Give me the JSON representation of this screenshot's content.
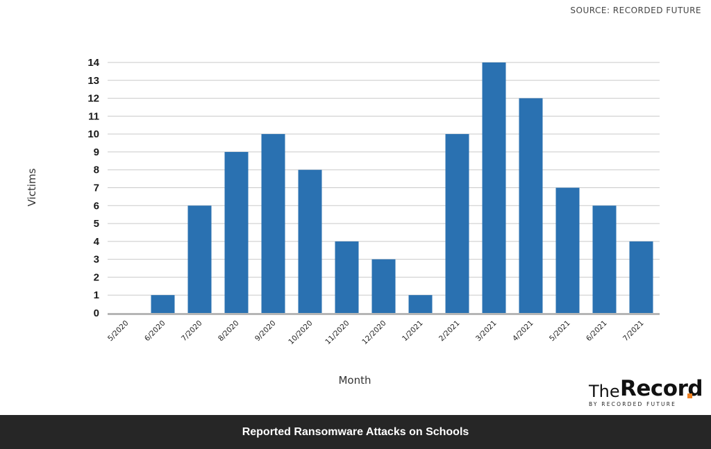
{
  "source_label": "SOURCE: RECORDED FUTURE",
  "footer_title": "Reported Ransomware Attacks on Schools",
  "brand": {
    "the": "The",
    "record": "Record",
    "tagline": "BY RECORDED FUTURE",
    "dot_color": "#ef8122"
  },
  "chart_data": {
    "type": "bar",
    "title": "",
    "xlabel": "Month",
    "ylabel": "Victims",
    "ylim": [
      0,
      14
    ],
    "yticks": [
      0,
      1,
      2,
      3,
      4,
      5,
      6,
      7,
      8,
      9,
      10,
      11,
      12,
      13,
      14
    ],
    "grid": true,
    "bar_color": "#2a71b1",
    "categories": [
      "5/2020",
      "6/2020",
      "7/2020",
      "8/2020",
      "9/2020",
      "10/2020",
      "11/2020",
      "12/2020",
      "1/2021",
      "2/2021",
      "3/2021",
      "4/2021",
      "5/2021",
      "6/2021",
      "7/2021"
    ],
    "values": [
      0,
      1,
      6,
      9,
      10,
      8,
      4,
      3,
      1,
      10,
      14,
      12,
      7,
      6,
      4
    ]
  }
}
